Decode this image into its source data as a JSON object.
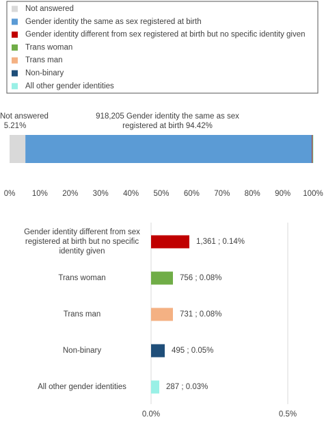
{
  "chart_data": [
    {
      "type": "stacked_bar_h",
      "series": [
        {
          "name": "Not answered",
          "color": "#d9d9d9",
          "values": [
            5.21
          ],
          "value_labels": [
            "5.21%"
          ]
        },
        {
          "name": "Gender identity the same as sex registered at birth",
          "color": "#5b9bd5",
          "values": [
            94.42
          ],
          "value_labels": [
            "918,205  Gender identity the same as sex registered at birth 94.42%"
          ]
        },
        {
          "name": "Gender identity different from sex registered at birth but no specific identity given",
          "color": "#c00000",
          "values": [
            0.14
          ]
        },
        {
          "name": "Trans woman",
          "color": "#70ad47",
          "values": [
            0.08
          ]
        },
        {
          "name": "Trans man",
          "color": "#f4b183",
          "values": [
            0.08
          ]
        },
        {
          "name": "Non-binary",
          "color": "#1f4e79",
          "values": [
            0.05
          ]
        },
        {
          "name": "All other gender identities",
          "color": "#99f0e6",
          "values": [
            0.03
          ]
        }
      ],
      "xlim": [
        0,
        100
      ],
      "xticks": [
        {
          "value": 0,
          "label": "0%"
        },
        {
          "value": 10,
          "label": "10%"
        },
        {
          "value": 20,
          "label": "20%"
        },
        {
          "value": 30,
          "label": "30%"
        },
        {
          "value": 40,
          "label": "40%"
        },
        {
          "value": 50,
          "label": "50%"
        },
        {
          "value": 60,
          "label": "60%"
        },
        {
          "value": 70,
          "label": "70%"
        },
        {
          "value": 80,
          "label": "80%"
        },
        {
          "value": 90,
          "label": "90%"
        },
        {
          "value": 100,
          "label": "100%"
        }
      ]
    },
    {
      "type": "bar_h",
      "categories": [
        "Gender identity different from sex registered at birth but no specific identity given",
        "Trans woman",
        "Trans man",
        "Non-binary",
        "All other gender identities"
      ],
      "values": [
        0.14,
        0.08,
        0.08,
        0.05,
        0.03
      ],
      "value_labels": [
        "1,361 ; 0.14%",
        "756 ; 0.08%",
        "731 ; 0.08%",
        "495 ; 0.05%",
        "287 ; 0.03%"
      ],
      "colors": [
        "#c00000",
        "#70ad47",
        "#f4b183",
        "#1f4e79",
        "#99f0e6"
      ],
      "xlim": [
        0,
        0.6
      ],
      "xticks": [
        {
          "value": 0,
          "label": "0.0%"
        },
        {
          "value": 0.5,
          "label": "0.5%"
        }
      ],
      "grid": true
    }
  ]
}
